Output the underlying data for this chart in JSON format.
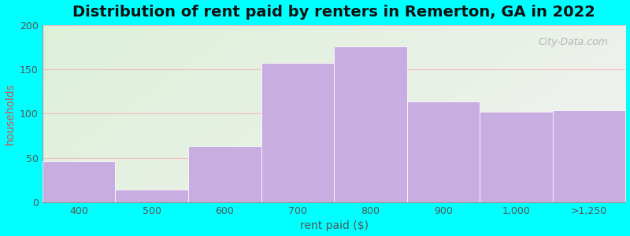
{
  "title": "Distribution of rent paid by renters in Remerton, GA in 2022",
  "xlabel": "rent paid ($)",
  "ylabel": "households",
  "categories": [
    "400",
    "500",
    "600",
    "700",
    "800",
    "900",
    "1,000",
    ">1,250"
  ],
  "values": [
    46,
    14,
    63,
    157,
    176,
    114,
    102,
    104
  ],
  "bar_color": "#c8aee0",
  "ylim": [
    0,
    200
  ],
  "yticks": [
    0,
    50,
    100,
    150,
    200
  ],
  "bg_color": "#00FFFF",
  "plot_bg_left_color": "#ddf0d8",
  "plot_bg_right_color": "#f0f0f0",
  "title_fontsize": 14,
  "axis_label_fontsize": 10,
  "tick_fontsize": 9,
  "watermark_text": "City-Data.com",
  "grid_color": "#e8a0a0",
  "ylabel_color": "#cc6666"
}
